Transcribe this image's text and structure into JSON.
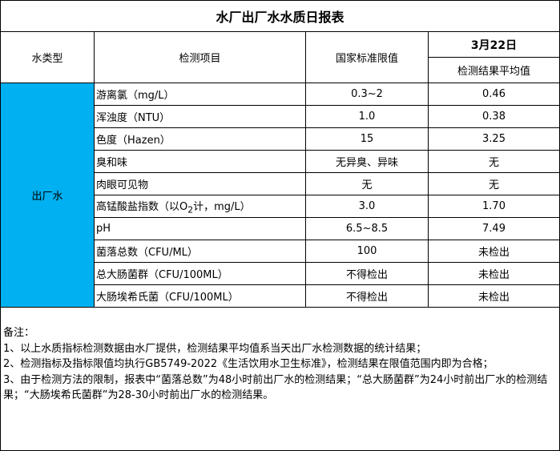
{
  "title": "水厂出厂水水质日报表",
  "headers": {
    "water_type": "水类型",
    "item": "检测项目",
    "standard": "国家标准限值",
    "date": "3月22日",
    "result": "检测结果平均值"
  },
  "water_type": "出厂水",
  "rows": [
    {
      "item": "游离氯（mg/L）",
      "standard": "0.3~2",
      "result": "0.46"
    },
    {
      "item": "浑浊度（NTU）",
      "standard": "1.0",
      "result": "0.38"
    },
    {
      "item": "色度（Hazen）",
      "standard": "15",
      "result": "3.25"
    },
    {
      "item": "臭和味",
      "standard": "无异臭、异味",
      "result": "无"
    },
    {
      "item": "肉眼可见物",
      "standard": "无",
      "result": "无"
    },
    {
      "item_pre": "高锰酸盐指数（以O",
      "item_sub": "2",
      "item_post": "计，mg/L）",
      "standard": "3.0",
      "result": "1.70"
    },
    {
      "item": "pH",
      "standard": "6.5~8.5",
      "result": "7.49"
    },
    {
      "item": "菌落总数（CFU/ML）",
      "standard": "100",
      "result": "未检出"
    },
    {
      "item": "总大肠菌群（CFU/100ML）",
      "standard": "不得检出",
      "result": "未检出"
    },
    {
      "item": "大肠埃希氏菌（CFU/100ML）",
      "standard": "不得检出",
      "result": "未检出"
    }
  ],
  "notes": [
    "备注：",
    "1、以上水质指标检测数据由水厂提供，检测结果平均值系当天出厂水检测数据的统计结果；",
    "2、检测指标及指标限值均执行GB5749-2022《生活饮用水卫生标准》，检测结果在限值范围内即为合格；",
    "3、由于检测方法的限制，报表中“菌落总数”为48小时前出厂水的检测结果；“总大肠菌群”为24小时前出厂水的检测结果；“大肠埃希氏菌群”为28-30小时前出厂水的检测结果。"
  ]
}
